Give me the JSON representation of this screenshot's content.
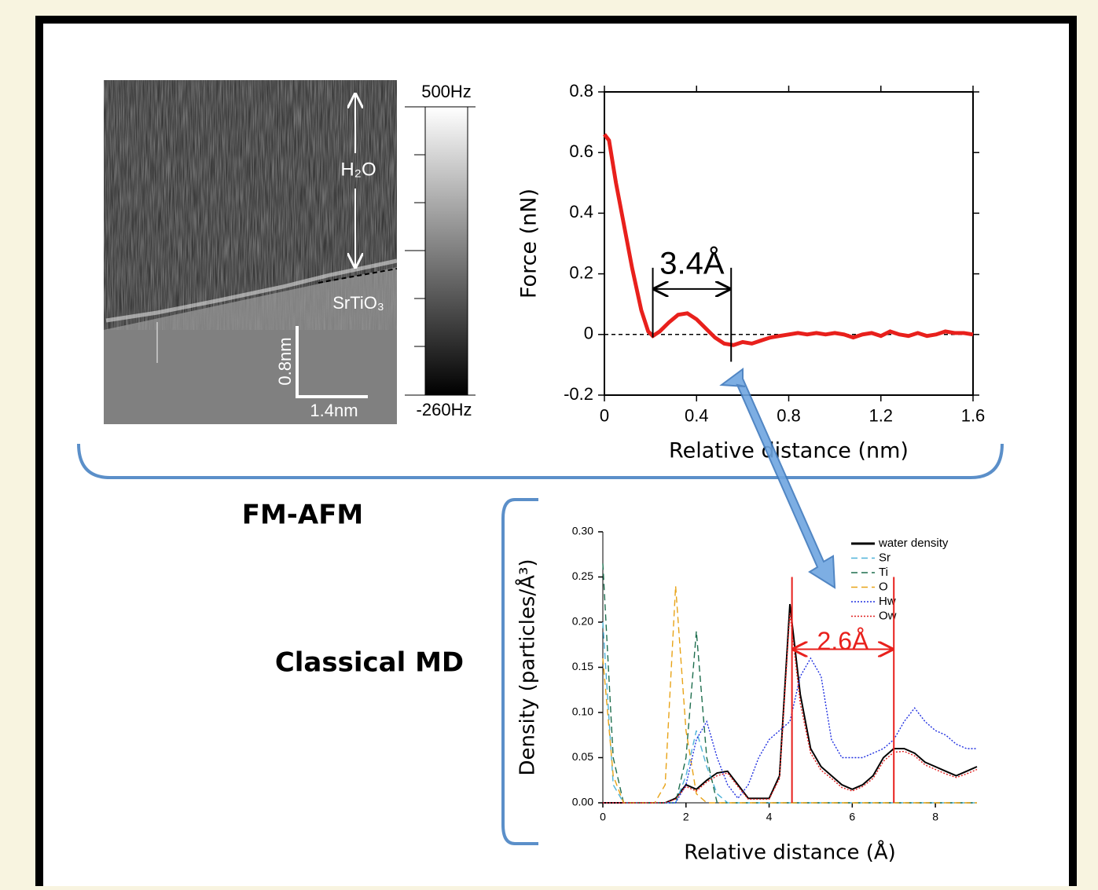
{
  "image_panel": {
    "water_label": "H₂O",
    "surface_label": "SrTiO₃",
    "colorbar_max": "500Hz",
    "colorbar_min": "-260Hz",
    "scale_vertical": "0.8nm",
    "scale_horizontal": "1.4nm"
  },
  "labels": {
    "fm_afm": "FM-AFM",
    "classical_md": "Classical MD"
  },
  "chart_data": [
    {
      "type": "line",
      "xlabel": "Relative distance (nm)",
      "ylabel": "Force (nN)",
      "x": [
        0,
        0.02,
        0.05,
        0.08,
        0.12,
        0.16,
        0.19,
        0.21,
        0.24,
        0.28,
        0.32,
        0.36,
        0.4,
        0.44,
        0.48,
        0.52,
        0.56,
        0.6,
        0.64,
        0.68,
        0.72,
        0.76,
        0.8,
        0.84,
        0.88,
        0.92,
        0.96,
        1.0,
        1.04,
        1.08,
        1.12,
        1.16,
        1.2,
        1.24,
        1.28,
        1.32,
        1.36,
        1.4,
        1.44,
        1.48,
        1.52,
        1.56,
        1.6
      ],
      "series": [
        {
          "color": "#e8201c",
          "style": "solid",
          "values": [
            0.66,
            0.64,
            0.5,
            0.38,
            0.22,
            0.08,
            0.01,
            -0.005,
            0.01,
            0.04,
            0.065,
            0.07,
            0.05,
            0.02,
            -0.01,
            -0.03,
            -0.035,
            -0.025,
            -0.03,
            -0.02,
            -0.01,
            -0.005,
            0,
            0.005,
            0,
            0.005,
            0,
            0.005,
            0,
            -0.01,
            0,
            0.005,
            -0.005,
            0.01,
            0,
            -0.005,
            0.005,
            -0.005,
            0,
            0.01,
            0.005,
            0.005,
            0
          ]
        }
      ],
      "xlim": [
        0,
        1.6
      ],
      "xticks": [
        0,
        0.4,
        0.8,
        1.2,
        1.6
      ],
      "ylim": [
        -0.2,
        0.8
      ],
      "yticks": [
        -0.2,
        0,
        0.2,
        0.4,
        0.6,
        0.8
      ],
      "box": true,
      "zero_line": true,
      "annotation": {
        "text": "3.4Å",
        "x1": 0.21,
        "x2": 0.55,
        "color": "#000000"
      }
    },
    {
      "type": "line",
      "xlabel": "Relative distance (Å)",
      "ylabel": "Density (particles/Å³)",
      "x": [
        0,
        0.25,
        0.5,
        0.75,
        1,
        1.25,
        1.5,
        1.75,
        2,
        2.25,
        2.5,
        2.75,
        3,
        3.25,
        3.5,
        3.75,
        4,
        4.25,
        4.5,
        4.75,
        5,
        5.25,
        5.5,
        5.75,
        6,
        6.25,
        6.5,
        6.75,
        7,
        7.25,
        7.5,
        7.75,
        8,
        8.25,
        8.5,
        8.75,
        9
      ],
      "series": [
        {
          "name": "water density",
          "color": "#000000",
          "style": "solid",
          "values": [
            0,
            0,
            0,
            0,
            0,
            0,
            0,
            0.005,
            0.02,
            0.015,
            0.025,
            0.033,
            0.035,
            0.02,
            0.005,
            0.005,
            0.005,
            0.03,
            0.22,
            0.12,
            0.06,
            0.04,
            0.03,
            0.02,
            0.015,
            0.02,
            0.03,
            0.05,
            0.06,
            0.06,
            0.055,
            0.045,
            0.04,
            0.035,
            0.03,
            0.035,
            0.04
          ]
        },
        {
          "name": "Sr",
          "color": "#4fb3d9",
          "style": "dashed",
          "values": [
            0.2,
            0.02,
            0,
            0,
            0,
            0,
            0,
            0,
            0.03,
            0.08,
            0.04,
            0.01,
            0,
            0,
            0,
            0,
            0,
            0,
            0,
            0,
            0,
            0,
            0,
            0,
            0,
            0,
            0,
            0,
            0,
            0,
            0,
            0,
            0,
            0,
            0,
            0,
            0
          ]
        },
        {
          "name": "Ti",
          "color": "#1e6e4e",
          "style": "dashed",
          "values": [
            0.265,
            0.05,
            0,
            0,
            0,
            0,
            0,
            0,
            0.05,
            0.19,
            0.05,
            0,
            0,
            0,
            0,
            0,
            0,
            0,
            0,
            0,
            0,
            0,
            0,
            0,
            0,
            0,
            0,
            0,
            0,
            0,
            0,
            0,
            0,
            0,
            0,
            0,
            0
          ]
        },
        {
          "name": "O",
          "color": "#e8a317",
          "style": "dashed",
          "values": [
            0.16,
            0.03,
            0,
            0,
            0,
            0,
            0.02,
            0.24,
            0.08,
            0.01,
            0,
            0,
            0,
            0,
            0,
            0,
            0,
            0,
            0,
            0,
            0,
            0,
            0,
            0,
            0,
            0,
            0,
            0,
            0,
            0,
            0,
            0,
            0,
            0,
            0,
            0,
            0
          ]
        },
        {
          "name": "Hw",
          "color": "#2030e0",
          "style": "dotted",
          "values": [
            0,
            0,
            0,
            0,
            0,
            0,
            0,
            0,
            0.02,
            0.07,
            0.09,
            0.05,
            0.02,
            0.005,
            0.02,
            0.05,
            0.07,
            0.08,
            0.09,
            0.14,
            0.16,
            0.14,
            0.07,
            0.05,
            0.05,
            0.05,
            0.055,
            0.06,
            0.07,
            0.09,
            0.105,
            0.09,
            0.08,
            0.075,
            0.065,
            0.06,
            0.06
          ]
        },
        {
          "name": "Ow",
          "color": "#e02020",
          "style": "dotted",
          "values": [
            0,
            0,
            0,
            0,
            0,
            0,
            0,
            0.004,
            0.018,
            0.013,
            0.023,
            0.03,
            0.033,
            0.018,
            0.004,
            0.004,
            0.004,
            0.027,
            0.21,
            0.11,
            0.055,
            0.036,
            0.027,
            0.017,
            0.013,
            0.018,
            0.027,
            0.046,
            0.056,
            0.057,
            0.052,
            0.042,
            0.037,
            0.032,
            0.028,
            0.032,
            0.037
          ]
        }
      ],
      "xlim": [
        0,
        9
      ],
      "xticks": [
        0,
        2,
        4,
        6,
        8
      ],
      "ylim": [
        0,
        0.3
      ],
      "yticks": [
        {
          "value": 0,
          "label": "0.00"
        },
        {
          "value": 0.05,
          "label": "0.05"
        },
        {
          "value": 0.1,
          "label": "0.10"
        },
        {
          "value": 0.15,
          "label": "0.15"
        },
        {
          "value": 0.2,
          "label": "0.20"
        },
        {
          "value": 0.25,
          "label": "0.25"
        },
        {
          "value": 0.3,
          "label": "0.30"
        }
      ],
      "box": false,
      "legend": "upper right",
      "annotation": {
        "text": "2.6Å",
        "x1": 4.55,
        "x2": 7.0,
        "color": "#e8201c"
      }
    }
  ]
}
